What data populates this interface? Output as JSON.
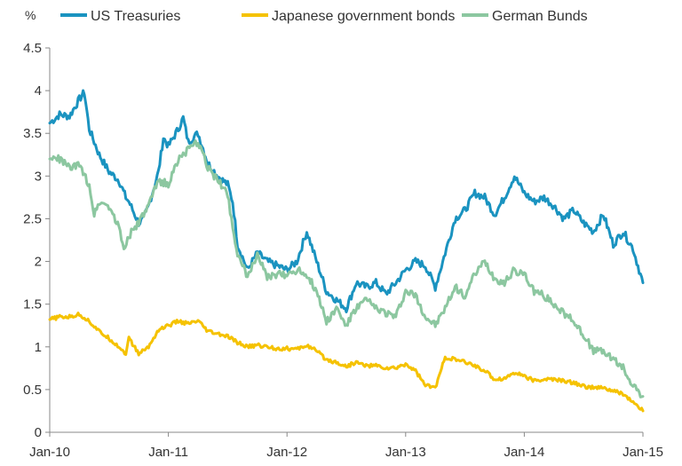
{
  "chart_data": {
    "type": "line",
    "ylabel": "%",
    "ylim": [
      0,
      4.5
    ],
    "yticks": [
      "0",
      "0.5",
      "1",
      "1.5",
      "2",
      "2.5",
      "3",
      "3.5",
      "4",
      "4.5"
    ],
    "xlim": [
      "2010-01",
      "2015-01"
    ],
    "xticks": [
      "Jan-10",
      "Jan-11",
      "Jan-12",
      "Jan-13",
      "Jan-14",
      "Jan-15"
    ],
    "grid": false,
    "legend": "top",
    "series": [
      {
        "name": "US Treasuries",
        "color": "#1a93c0",
        "points": [
          [
            "2010-01",
            3.62
          ],
          [
            "2010-02",
            3.72
          ],
          [
            "2010-03",
            3.7
          ],
          [
            "2010-04",
            3.9
          ],
          [
            "2010-04.5",
            3.98
          ],
          [
            "2010-05",
            3.55
          ],
          [
            "2010-06",
            3.25
          ],
          [
            "2010-07",
            3.05
          ],
          [
            "2010-08",
            2.95
          ],
          [
            "2010-08.7",
            2.75
          ],
          [
            "2010-09",
            2.7
          ],
          [
            "2010-10",
            2.45
          ],
          [
            "2010-10.5",
            2.5
          ],
          [
            "2010-11",
            2.65
          ],
          [
            "2010-12",
            3.05
          ],
          [
            "2010-12.5",
            3.45
          ],
          [
            "2011-01",
            3.35
          ],
          [
            "2011-02",
            3.55
          ],
          [
            "2011-02.5",
            3.68
          ],
          [
            "2011-03",
            3.4
          ],
          [
            "2011-04",
            3.5
          ],
          [
            "2011-05",
            3.15
          ],
          [
            "2011-06",
            3.0
          ],
          [
            "2011-07",
            2.9
          ],
          [
            "2011-07.5",
            2.7
          ],
          [
            "2011-08",
            2.2
          ],
          [
            "2011-09",
            1.9
          ],
          [
            "2011-10",
            2.1
          ],
          [
            "2011-11",
            2.0
          ],
          [
            "2011-12",
            1.95
          ],
          [
            "2012-01",
            1.9
          ],
          [
            "2012-02",
            2.0
          ],
          [
            "2012-03",
            2.35
          ],
          [
            "2012-04",
            2.0
          ],
          [
            "2012-05",
            1.65
          ],
          [
            "2012-06",
            1.55
          ],
          [
            "2012-07",
            1.45
          ],
          [
            "2012-08",
            1.75
          ],
          [
            "2012-09",
            1.7
          ],
          [
            "2012-10",
            1.75
          ],
          [
            "2012-11",
            1.62
          ],
          [
            "2012-12",
            1.75
          ],
          [
            "2013-01",
            1.9
          ],
          [
            "2013-02",
            2.0
          ],
          [
            "2013-03",
            1.95
          ],
          [
            "2013-04",
            1.7
          ],
          [
            "2013-05",
            2.1
          ],
          [
            "2013-06",
            2.5
          ],
          [
            "2013-07",
            2.6
          ],
          [
            "2013-08",
            2.8
          ],
          [
            "2013-09",
            2.75
          ],
          [
            "2013-10",
            2.55
          ],
          [
            "2013-11",
            2.75
          ],
          [
            "2013-12",
            3.0
          ],
          [
            "2014-01",
            2.8
          ],
          [
            "2014-02",
            2.7
          ],
          [
            "2014-03",
            2.75
          ],
          [
            "2014-04",
            2.65
          ],
          [
            "2014-05",
            2.5
          ],
          [
            "2014-06",
            2.6
          ],
          [
            "2014-07",
            2.45
          ],
          [
            "2014-08",
            2.35
          ],
          [
            "2014-09",
            2.55
          ],
          [
            "2014-10",
            2.2
          ],
          [
            "2014-11",
            2.35
          ],
          [
            "2014-12",
            2.15
          ],
          [
            "2014-12.5",
            1.95
          ],
          [
            "2015-01",
            1.75
          ]
        ]
      },
      {
        "name": "Japanese government bonds",
        "color": "#f5c200",
        "points": [
          [
            "2010-01",
            1.32
          ],
          [
            "2010-02",
            1.35
          ],
          [
            "2010-03",
            1.35
          ],
          [
            "2010-04",
            1.38
          ],
          [
            "2010-05",
            1.3
          ],
          [
            "2010-06",
            1.18
          ],
          [
            "2010-07",
            1.1
          ],
          [
            "2010-08",
            1.0
          ],
          [
            "2010-08.7",
            0.92
          ],
          [
            "2010-09",
            1.1
          ],
          [
            "2010-10",
            0.92
          ],
          [
            "2010-11",
            1.0
          ],
          [
            "2010-12",
            1.2
          ],
          [
            "2011-01",
            1.25
          ],
          [
            "2011-02",
            1.3
          ],
          [
            "2011-03",
            1.27
          ],
          [
            "2011-04",
            1.3
          ],
          [
            "2011-05",
            1.18
          ],
          [
            "2011-06",
            1.15
          ],
          [
            "2011-07",
            1.12
          ],
          [
            "2011-08",
            1.05
          ],
          [
            "2011-09",
            1.0
          ],
          [
            "2011-10",
            1.02
          ],
          [
            "2011-11",
            1.0
          ],
          [
            "2011-12",
            0.98
          ],
          [
            "2012-01",
            0.98
          ],
          [
            "2012-02",
            0.97
          ],
          [
            "2012-03",
            1.02
          ],
          [
            "2012-04",
            0.95
          ],
          [
            "2012-05",
            0.85
          ],
          [
            "2012-06",
            0.82
          ],
          [
            "2012-07",
            0.77
          ],
          [
            "2012-08",
            0.82
          ],
          [
            "2012-09",
            0.78
          ],
          [
            "2012-10",
            0.78
          ],
          [
            "2012-11",
            0.75
          ],
          [
            "2012-12",
            0.75
          ],
          [
            "2013-01",
            0.8
          ],
          [
            "2013-02",
            0.72
          ],
          [
            "2013-03",
            0.55
          ],
          [
            "2013-04",
            0.52
          ],
          [
            "2013-05",
            0.88
          ],
          [
            "2013-06",
            0.85
          ],
          [
            "2013-07",
            0.82
          ],
          [
            "2013-08",
            0.78
          ],
          [
            "2013-09",
            0.72
          ],
          [
            "2013-10",
            0.62
          ],
          [
            "2013-11",
            0.63
          ],
          [
            "2013-12",
            0.7
          ],
          [
            "2014-01",
            0.66
          ],
          [
            "2014-02",
            0.6
          ],
          [
            "2014-03",
            0.62
          ],
          [
            "2014-04",
            0.62
          ],
          [
            "2014-05",
            0.6
          ],
          [
            "2014-06",
            0.58
          ],
          [
            "2014-07",
            0.54
          ],
          [
            "2014-08",
            0.52
          ],
          [
            "2014-09",
            0.52
          ],
          [
            "2014-10",
            0.48
          ],
          [
            "2014-11",
            0.45
          ],
          [
            "2014-12",
            0.35
          ],
          [
            "2015-01",
            0.25
          ]
        ]
      },
      {
        "name": "German Bunds",
        "color": "#8cc7a0",
        "points": [
          [
            "2010-01",
            3.2
          ],
          [
            "2010-02",
            3.2
          ],
          [
            "2010-03",
            3.1
          ],
          [
            "2010-04",
            3.12
          ],
          [
            "2010-05",
            2.9
          ],
          [
            "2010-05.5",
            2.55
          ],
          [
            "2010-06",
            2.7
          ],
          [
            "2010-07",
            2.65
          ],
          [
            "2010-08",
            2.4
          ],
          [
            "2010-08.5",
            2.15
          ],
          [
            "2010-09",
            2.3
          ],
          [
            "2010-10",
            2.45
          ],
          [
            "2010-11",
            2.65
          ],
          [
            "2010-12",
            2.95
          ],
          [
            "2011-01",
            2.9
          ],
          [
            "2011-02",
            3.2
          ],
          [
            "2011-03",
            3.3
          ],
          [
            "2011-04",
            3.4
          ],
          [
            "2011-05",
            3.1
          ],
          [
            "2011-06",
            2.95
          ],
          [
            "2011-07",
            2.8
          ],
          [
            "2011-07.5",
            2.4
          ],
          [
            "2011-08",
            2.1
          ],
          [
            "2011-09",
            1.8
          ],
          [
            "2011-10",
            2.1
          ],
          [
            "2011-11",
            1.8
          ],
          [
            "2011-12",
            1.85
          ],
          [
            "2012-01",
            1.85
          ],
          [
            "2012-02",
            1.9
          ],
          [
            "2012-03",
            1.85
          ],
          [
            "2012-04",
            1.65
          ],
          [
            "2012-05",
            1.3
          ],
          [
            "2012-06",
            1.45
          ],
          [
            "2012-07",
            1.25
          ],
          [
            "2012-08",
            1.45
          ],
          [
            "2012-09",
            1.55
          ],
          [
            "2012-10",
            1.45
          ],
          [
            "2012-11",
            1.4
          ],
          [
            "2012-12",
            1.35
          ],
          [
            "2013-01",
            1.65
          ],
          [
            "2013-02",
            1.6
          ],
          [
            "2013-03",
            1.35
          ],
          [
            "2013-04",
            1.25
          ],
          [
            "2013-05",
            1.45
          ],
          [
            "2013-06",
            1.7
          ],
          [
            "2013-07",
            1.6
          ],
          [
            "2013-08",
            1.85
          ],
          [
            "2013-09",
            2.0
          ],
          [
            "2013-10",
            1.8
          ],
          [
            "2013-11",
            1.75
          ],
          [
            "2013-12",
            1.9
          ],
          [
            "2014-01",
            1.85
          ],
          [
            "2014-02",
            1.65
          ],
          [
            "2014-03",
            1.6
          ],
          [
            "2014-04",
            1.5
          ],
          [
            "2014-05",
            1.4
          ],
          [
            "2014-06",
            1.3
          ],
          [
            "2014-07",
            1.15
          ],
          [
            "2014-08",
            0.95
          ],
          [
            "2014-09",
            0.95
          ],
          [
            "2014-10",
            0.85
          ],
          [
            "2014-11",
            0.75
          ],
          [
            "2014-12",
            0.55
          ],
          [
            "2015-01",
            0.42
          ]
        ]
      }
    ]
  }
}
